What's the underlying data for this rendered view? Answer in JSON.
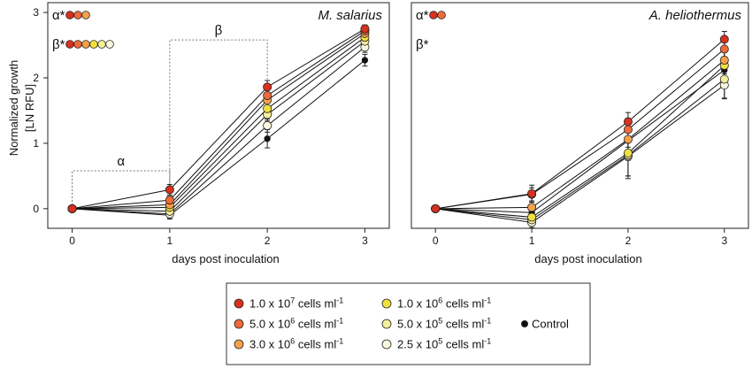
{
  "colors": {
    "c1": "#d7301f",
    "c2": "#ef6a3a",
    "c3": "#f5a14a",
    "c4": "#f0e040",
    "c5": "#f5ef9a",
    "c6": "#fbf8de",
    "control": "#111111"
  },
  "shared_axes": {
    "ylabel_line1": "Normalized growth",
    "ylabel_line2": "[LN RFU]",
    "xlabel": "days post inoculation"
  },
  "legend": {
    "items": [
      {
        "key": "c1",
        "base": "1.0 x 10",
        "exp": "7",
        "unit": " cells ml",
        "unit_exp": "-1"
      },
      {
        "key": "c2",
        "base": "5.0 x 10",
        "exp": "6",
        "unit": " cells ml",
        "unit_exp": "-1"
      },
      {
        "key": "c3",
        "base": "3.0 x 10",
        "exp": "6",
        "unit": " cells ml",
        "unit_exp": "-1"
      },
      {
        "key": "c4",
        "base": "1.0 x 10",
        "exp": "6",
        "unit": " cells ml",
        "unit_exp": "-1"
      },
      {
        "key": "c5",
        "base": "5.0 x 10",
        "exp": "5",
        "unit": " cells ml",
        "unit_exp": "-1"
      },
      {
        "key": "c6",
        "base": "2.5 x 10",
        "exp": "5",
        "unit": " cells ml",
        "unit_exp": "-1"
      },
      {
        "key": "control",
        "label": "Control"
      }
    ]
  },
  "chart_data": [
    {
      "type": "line",
      "title": "M. salarius",
      "xlabel": "days post inoculation",
      "ylabel": "Normalized growth [LN RFU]",
      "x": [
        0,
        1,
        2,
        3
      ],
      "xlim": [
        -0.25,
        3.25
      ],
      "ylim": [
        -0.3,
        3.15
      ],
      "xticks": [
        0,
        1,
        2,
        3
      ],
      "yticks": [
        0,
        1,
        2,
        3
      ],
      "series": [
        {
          "key": "c1",
          "values": [
            0,
            0.29,
            1.86,
            2.75
          ],
          "err": [
            0,
            0.08,
            0.1,
            0.06
          ]
        },
        {
          "key": "c2",
          "values": [
            0,
            0.13,
            1.73,
            2.72
          ],
          "err": [
            0,
            0.06,
            0.1,
            0.06
          ]
        },
        {
          "key": "c3",
          "values": [
            0,
            0.06,
            1.66,
            2.68
          ],
          "err": [
            0,
            0.06,
            0.1,
            0.06
          ]
        },
        {
          "key": "c4",
          "values": [
            0,
            0.02,
            1.53,
            2.62
          ],
          "err": [
            0,
            0.06,
            0.1,
            0.06
          ]
        },
        {
          "key": "c5",
          "values": [
            0,
            -0.04,
            1.44,
            2.56
          ],
          "err": [
            0,
            0.06,
            0.1,
            0.06
          ]
        },
        {
          "key": "c6",
          "values": [
            0,
            -0.08,
            1.27,
            2.47
          ],
          "err": [
            0,
            0.06,
            0.1,
            0.08
          ]
        },
        {
          "key": "control",
          "values": [
            0,
            -0.1,
            1.07,
            2.27
          ],
          "err": [
            0,
            0.06,
            0.14,
            0.09
          ]
        }
      ],
      "annotations": {
        "alpha_label": "α",
        "beta_label": "β",
        "alpha_star_label": "α*",
        "beta_star_label": "β*",
        "alpha_star_keys": [
          "c1",
          "c2",
          "c3"
        ],
        "beta_star_keys": [
          "c1",
          "c2",
          "c3",
          "c4",
          "c5",
          "c6"
        ],
        "alpha_bracket": {
          "x": [
            0,
            1
          ],
          "y": 0.58
        },
        "beta_bracket": {
          "x": [
            1,
            2
          ],
          "y": 2.58
        }
      }
    },
    {
      "type": "line",
      "title": "A. heliothermus",
      "xlabel": "days post inoculation",
      "x": [
        0,
        1,
        2,
        3
      ],
      "xlim": [
        -0.25,
        3.25
      ],
      "ylim": [
        -0.3,
        3.15
      ],
      "xticks": [
        0,
        1,
        2,
        3
      ],
      "yticks": [],
      "series": [
        {
          "key": "c1",
          "values": [
            0,
            0.23,
            1.33,
            2.59
          ],
          "err": [
            0,
            0.13,
            0.14,
            0.12
          ]
        },
        {
          "key": "c2",
          "values": [
            0,
            0.22,
            1.21,
            2.44
          ],
          "err": [
            0,
            0.1,
            0.13,
            0.12
          ]
        },
        {
          "key": "c3",
          "values": [
            0,
            0.02,
            1.06,
            2.27
          ],
          "err": [
            0,
            0.08,
            0.12,
            0.12
          ]
        },
        {
          "key": "c4",
          "values": [
            0,
            -0.13,
            0.85,
            2.19
          ],
          "err": [
            0,
            0.08,
            0.35,
            0.13
          ]
        },
        {
          "key": "c5",
          "values": [
            0,
            -0.17,
            0.82,
            1.98
          ],
          "err": [
            0,
            0.08,
            0.36,
            0.3
          ]
        },
        {
          "key": "c6",
          "values": [
            0,
            -0.21,
            0.8,
            1.89
          ],
          "err": [
            0,
            0.08,
            0.3,
            0.2
          ]
        },
        {
          "key": "control",
          "values": [
            0,
            -0.06,
            1.04,
            2.12
          ],
          "err": [
            0,
            0.08,
            0.3,
            0.15
          ]
        }
      ],
      "annotations": {
        "alpha_star_label": "α*",
        "beta_star_label": "β*",
        "alpha_star_keys": [
          "c1",
          "c2"
        ],
        "beta_star_keys": []
      }
    }
  ]
}
